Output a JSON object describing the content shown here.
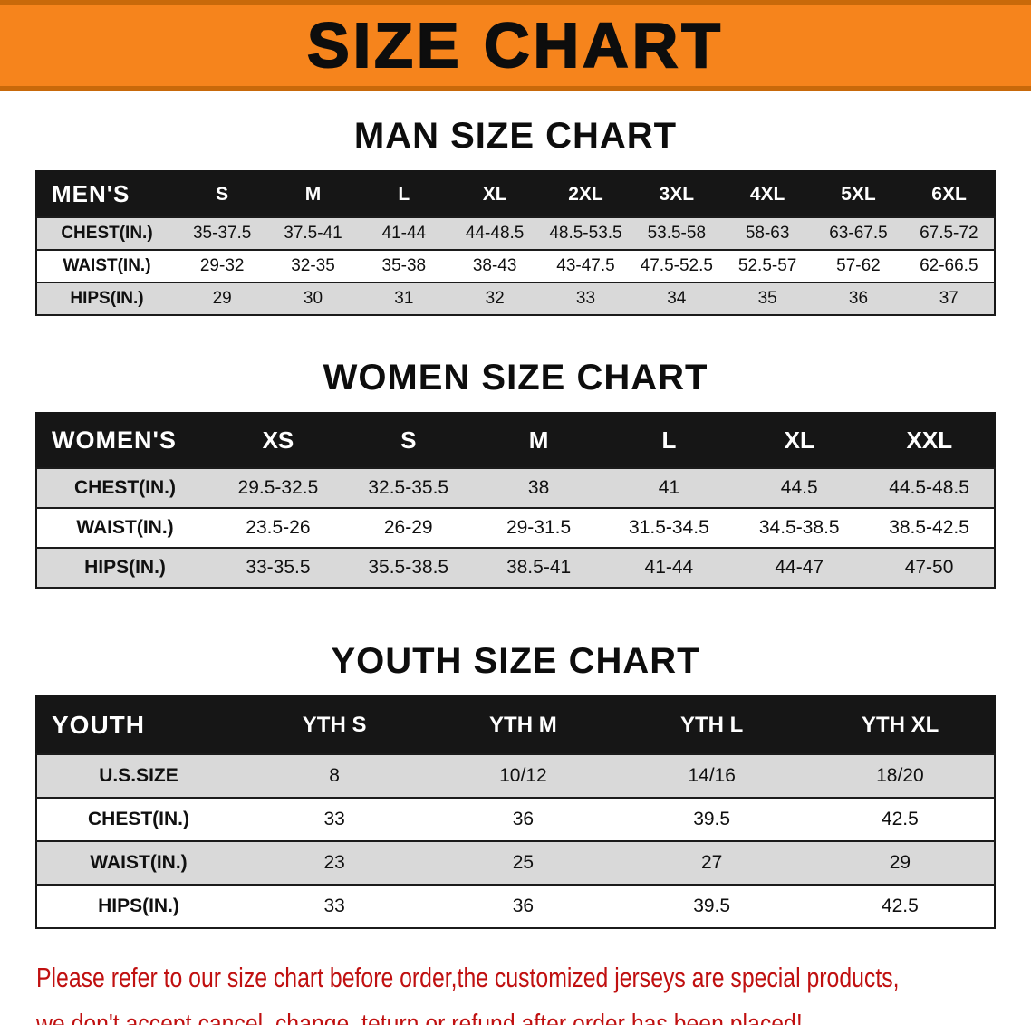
{
  "banner": {
    "title": "SIZE CHART"
  },
  "colors": {
    "banner_bg": "#f6841c",
    "banner_edge": "#c8690a",
    "header_bg": "#161616",
    "row_stripe": "#d9d9d9",
    "notice_red": "#c01010",
    "ink": "#111111"
  },
  "sections": [
    {
      "heading": "MAN SIZE CHART",
      "table": {
        "header": [
          "MEN'S",
          "S",
          "M",
          "L",
          "XL",
          "2XL",
          "3XL",
          "4XL",
          "5XL",
          "6XL"
        ],
        "rows": [
          [
            "CHEST(IN.)",
            "35-37.5",
            "37.5-41",
            "41-44",
            "44-48.5",
            "48.5-53.5",
            "53.5-58",
            "58-63",
            "63-67.5",
            "67.5-72"
          ],
          [
            "WAIST(IN.)",
            "29-32",
            "32-35",
            "35-38",
            "38-43",
            "43-47.5",
            "47.5-52.5",
            "52.5-57",
            "57-62",
            "62-66.5"
          ],
          [
            "HIPS(IN.)",
            "29",
            "30",
            "31",
            "32",
            "33",
            "34",
            "35",
            "36",
            "37"
          ]
        ]
      }
    },
    {
      "heading": "WOMEN SIZE CHART",
      "table": {
        "header": [
          "WOMEN'S",
          "XS",
          "S",
          "M",
          "L",
          "XL",
          "XXL"
        ],
        "rows": [
          [
            "CHEST(IN.)",
            "29.5-32.5",
            "32.5-35.5",
            "38",
            "41",
            "44.5",
            "44.5-48.5"
          ],
          [
            "WAIST(IN.)",
            "23.5-26",
            "26-29",
            "29-31.5",
            "31.5-34.5",
            "34.5-38.5",
            "38.5-42.5"
          ],
          [
            "HIPS(IN.)",
            "33-35.5",
            "35.5-38.5",
            "38.5-41",
            "41-44",
            "44-47",
            "47-50"
          ]
        ]
      }
    },
    {
      "heading": "YOUTH SIZE CHART",
      "table": {
        "header": [
          "YOUTH",
          "YTH S",
          "YTH M",
          "YTH L",
          "YTH XL"
        ],
        "rows": [
          [
            "U.S.SIZE",
            "8",
            "10/12",
            "14/16",
            "18/20"
          ],
          [
            "CHEST(IN.)",
            "33",
            "36",
            "39.5",
            "42.5"
          ],
          [
            "WAIST(IN.)",
            "23",
            "25",
            "27",
            "29"
          ],
          [
            "HIPS(IN.)",
            "33",
            "36",
            "39.5",
            "42.5"
          ]
        ]
      }
    }
  ],
  "footer": {
    "line1": "Please refer to our size chart before order,the customized jerseys are special products,",
    "line2": "we don't accept cancel, change, teturn or refund after order has been placed!"
  }
}
